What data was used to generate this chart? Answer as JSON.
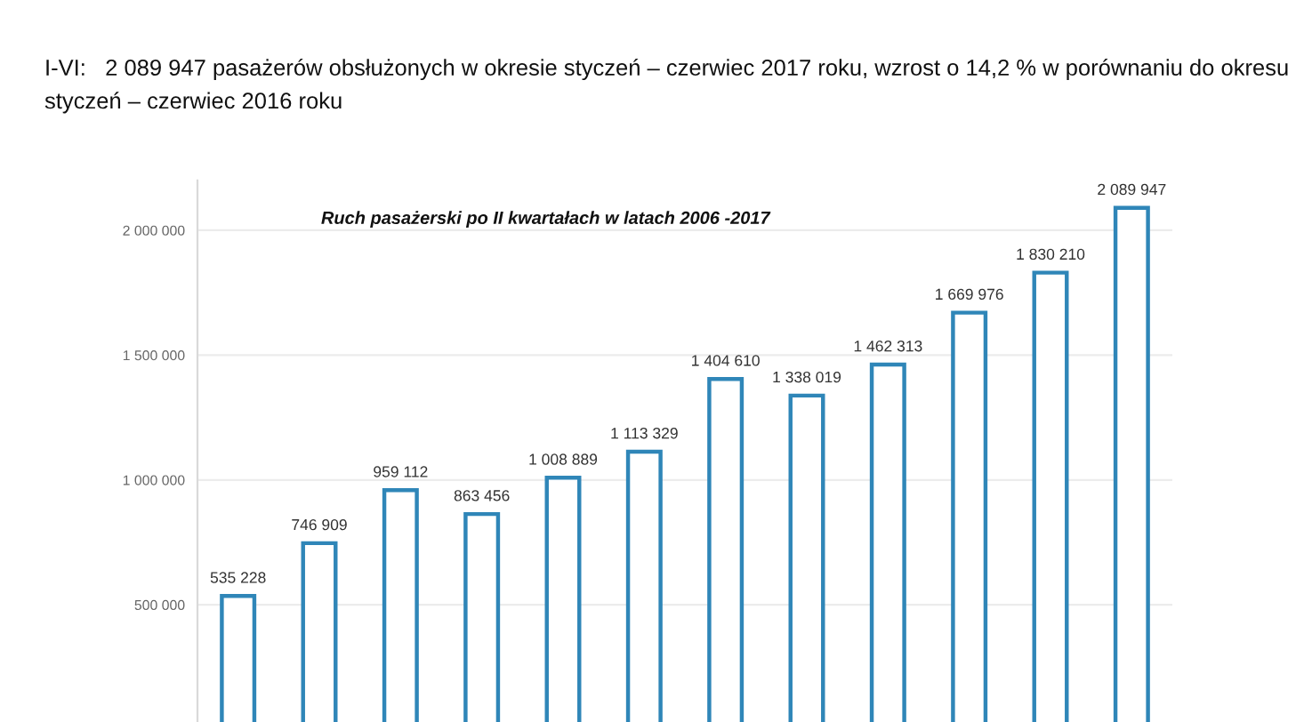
{
  "chart_data": {
    "type": "bar",
    "title": "Ruch pasażerski po II kwartałach w latach 2006 -2017",
    "annotations": [
      "I-VI:   2 089 947 pasażerów obsłużonych w okresie styczeń – czerwiec 2017 roku, wzrost o 14,2 % w porównaniu do okresu styczeń – czerwiec 2016 roku"
    ],
    "categories": [
      null,
      null,
      null,
      null,
      null,
      null,
      null,
      null,
      null,
      null,
      null,
      null
    ],
    "values": [
      535228,
      746909,
      959112,
      863456,
      1008889,
      1113329,
      1404610,
      1338019,
      1462313,
      1669976,
      1830210,
      2089947
    ],
    "color": "#2f86b8",
    "ylim": [
      0,
      2200000
    ],
    "yticks": [
      {
        "value": 500000,
        "label": "500 000"
      },
      {
        "value": 1000000,
        "label": "1 000 000"
      },
      {
        "value": 1500000,
        "label": "1 500 000"
      },
      {
        "value": 2000000,
        "label": "2 000 000"
      }
    ],
    "data_labels": true,
    "grid": "y",
    "tick_labels": "y"
  }
}
